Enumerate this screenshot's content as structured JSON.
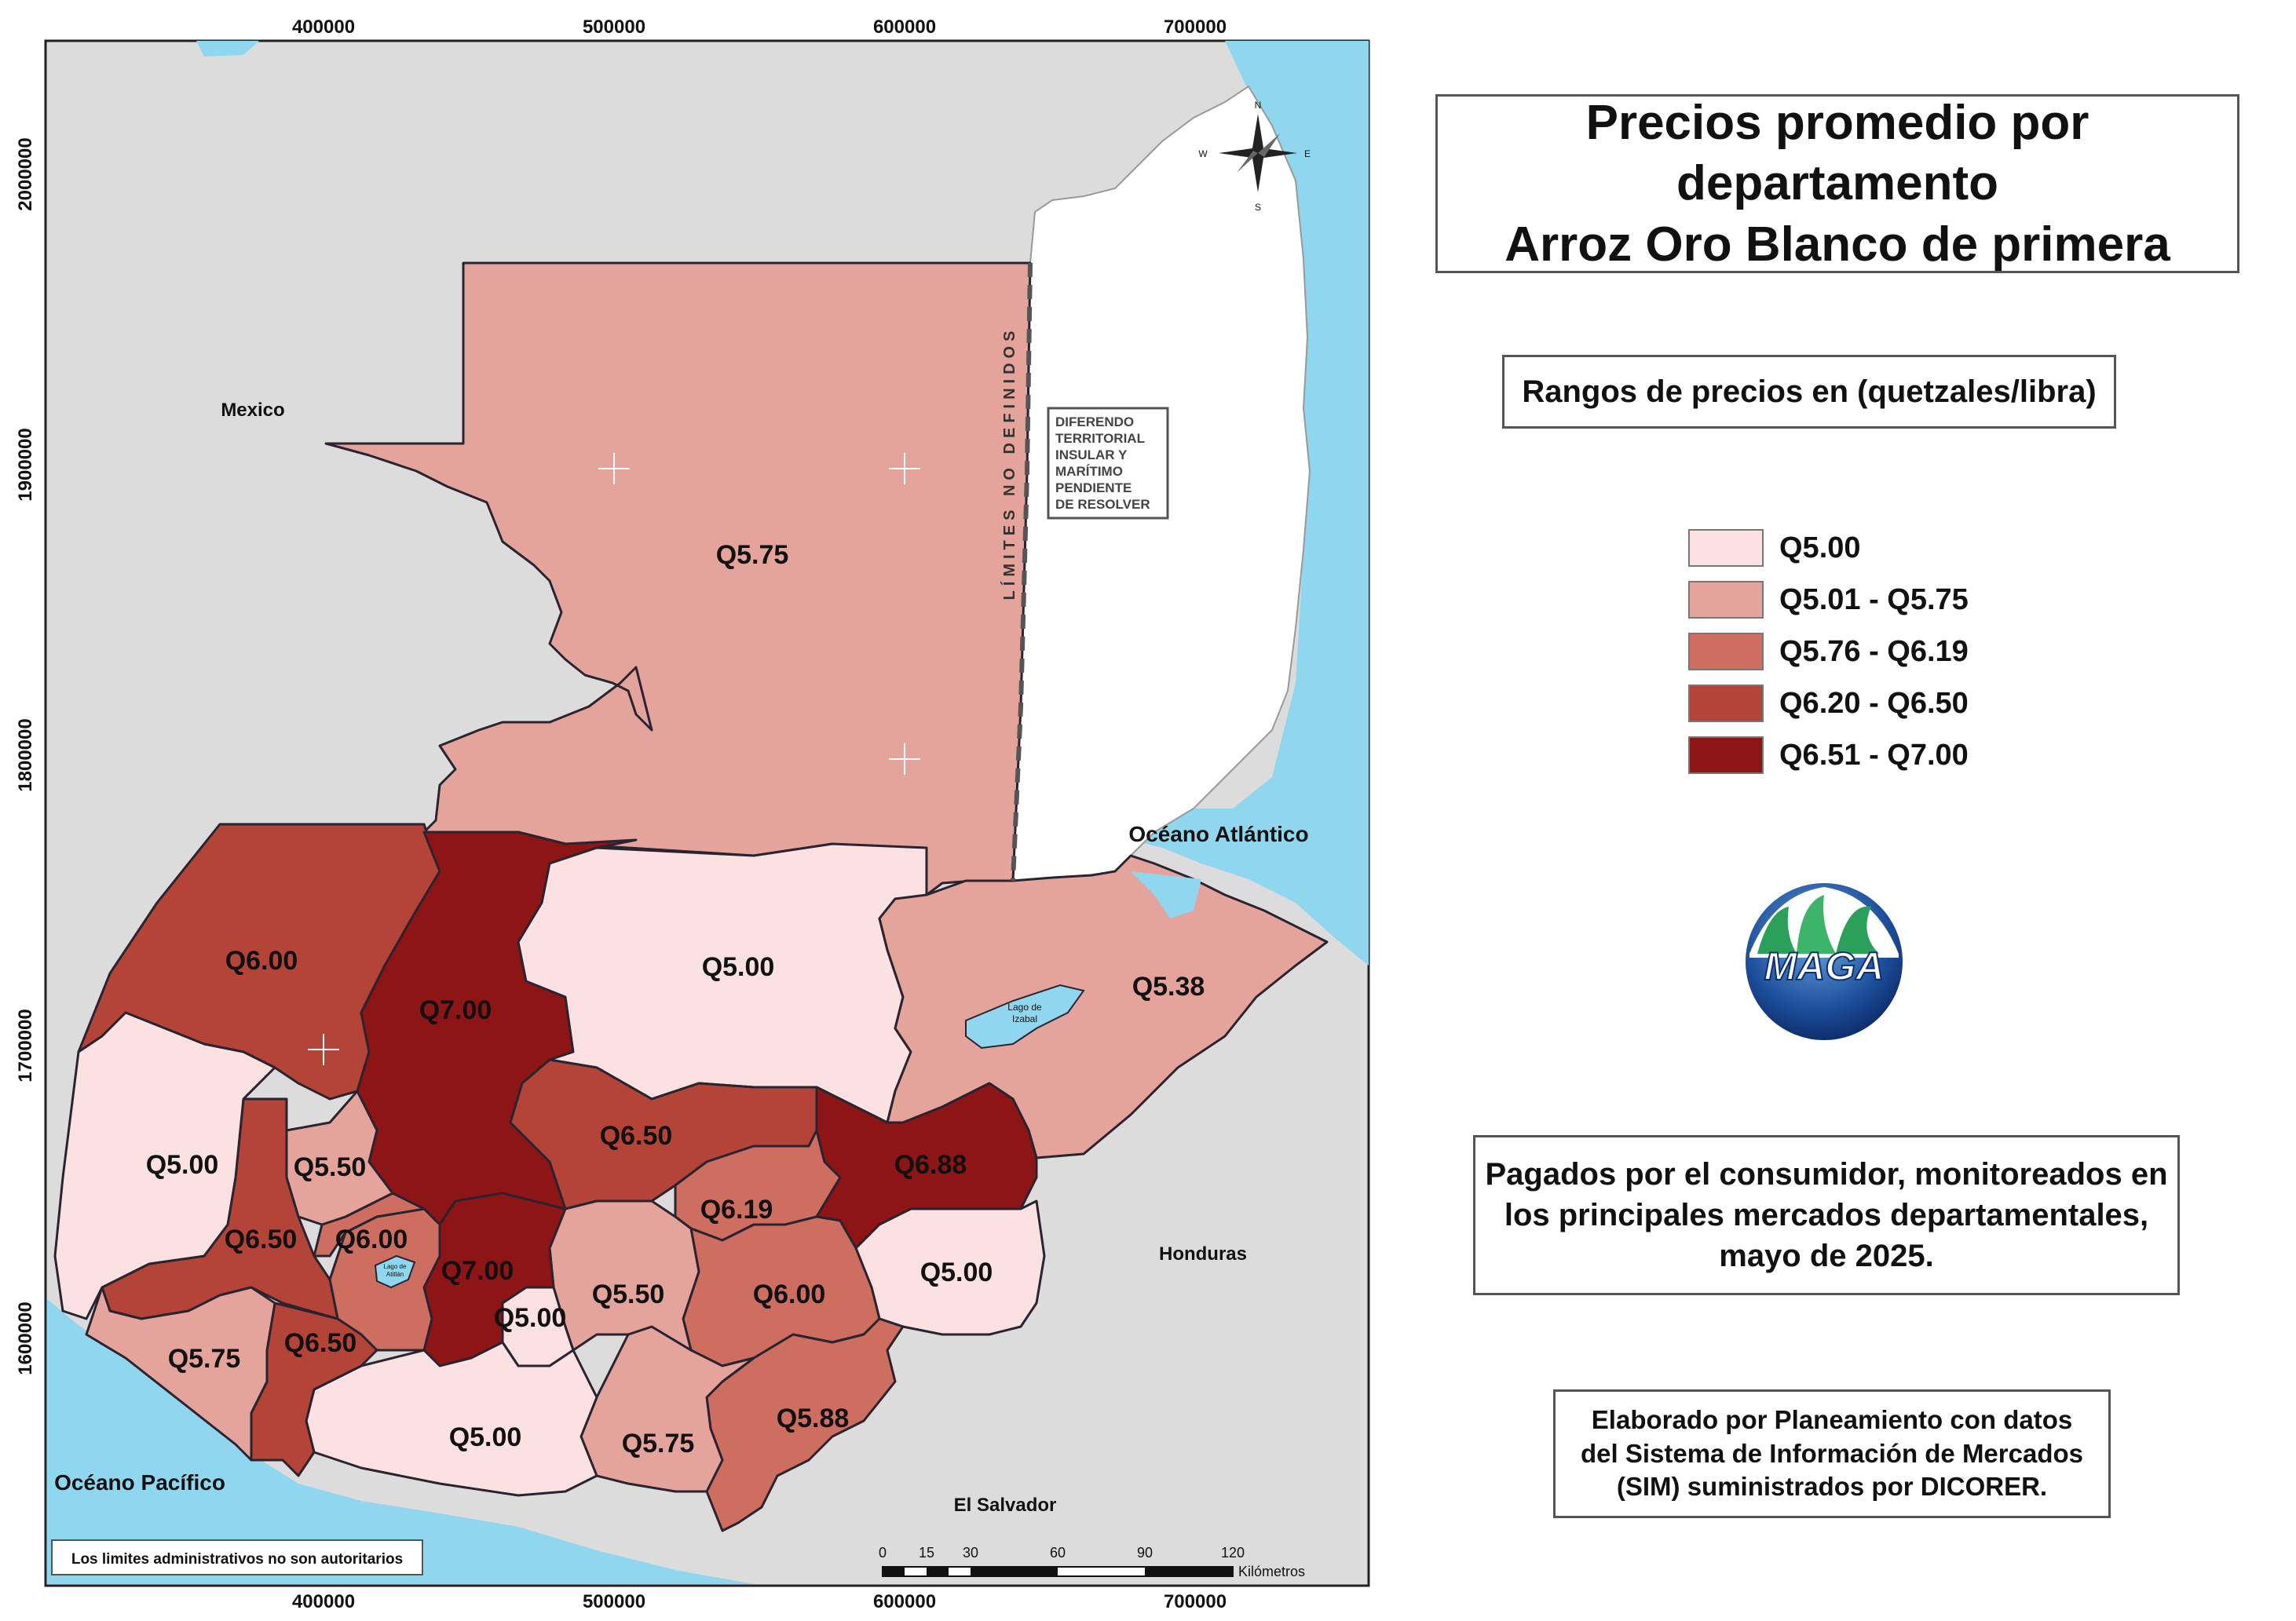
{
  "title": {
    "line1": "Precios promedio por departamento",
    "line2": "Arroz Oro Blanco de primera"
  },
  "range_heading": "Rangos de precios en (quetzales/libra)",
  "legend": [
    {
      "label": "Q5.00",
      "color": "#fbe1e1"
    },
    {
      "label": "Q5.01 - Q5.75",
      "color": "#e4a49c"
    },
    {
      "label": "Q5.76 - Q6.19",
      "color": "#cd6e61"
    },
    {
      "label": "Q6.20 - Q6.50",
      "color": "#b34437"
    },
    {
      "label": "Q6.51 - Q7.00",
      "color": "#8e1515"
    }
  ],
  "description": {
    "line1": "Pagados por el consumidor, monitoreados en",
    "line2": "los principales mercados departamentales,",
    "line3": "mayo de 2025."
  },
  "credit": {
    "line1": "Elaborado por Planeamiento con datos",
    "line2": "del Sistema de Información de Mercados",
    "line3": "(SIM) suministrados por DICORER."
  },
  "logo_text": "MAGA",
  "map": {
    "x_ticks": [
      "400000",
      "500000",
      "600000",
      "700000"
    ],
    "y_ticks": [
      "2000000",
      "1900000",
      "1800000",
      "1700000",
      "1600000"
    ],
    "region_labels": {
      "mexico": "Mexico",
      "honduras": "Honduras",
      "el_salvador": "El Salvador",
      "oceano_atlantico": "Océano Atlántico",
      "oceano_pacifico": "Océano Pacífico",
      "lago_izabal_1": "Lago de",
      "lago_izabal_2": "Izabal",
      "lago_atitlan_1": "Lago de",
      "lago_atitlan_2": "Atitlán"
    },
    "limites_label": "LÍMITES NO DEFINIDOS",
    "diferendo": [
      "DIFERENDO",
      "TERRITORIAL",
      "INSULAR Y",
      "MARÍTIMO",
      "PENDIENTE",
      "DE RESOLVER"
    ],
    "compass": {
      "n": "N",
      "s": "S",
      "e": "E",
      "w": "W"
    },
    "disclaimer": "Los limites administrativos no son autoritarios",
    "scale": {
      "ticks": [
        "0",
        "15",
        "30",
        "60",
        "90",
        "120"
      ],
      "unit": "Kilómetros"
    },
    "prices": {
      "peten": "Q5.75",
      "huehuetenango": "Q6.00",
      "quiche": "Q7.00",
      "alta_verapaz": "Q5.00",
      "izabal": "Q5.38",
      "baja_verapaz": "Q6.50",
      "el_progreso": "Q6.19",
      "zacapa": "Q6.88",
      "san_marcos": "Q5.00",
      "quetzaltenango_n": "Q5.50",
      "totonicapan": "Q6.00",
      "quetzaltenango": "Q6.50",
      "chimaltenango": "Q7.00",
      "sacatepequez": "Q5.00",
      "guatemala": "Q5.50",
      "jalapa": "Q6.00",
      "chiquimula": "Q5.00",
      "retalhuleu": "Q5.75",
      "suchitepequez": "Q6.50",
      "escuintla": "Q5.00",
      "santa_rosa": "Q5.75",
      "jutiapa": "Q5.88"
    }
  }
}
